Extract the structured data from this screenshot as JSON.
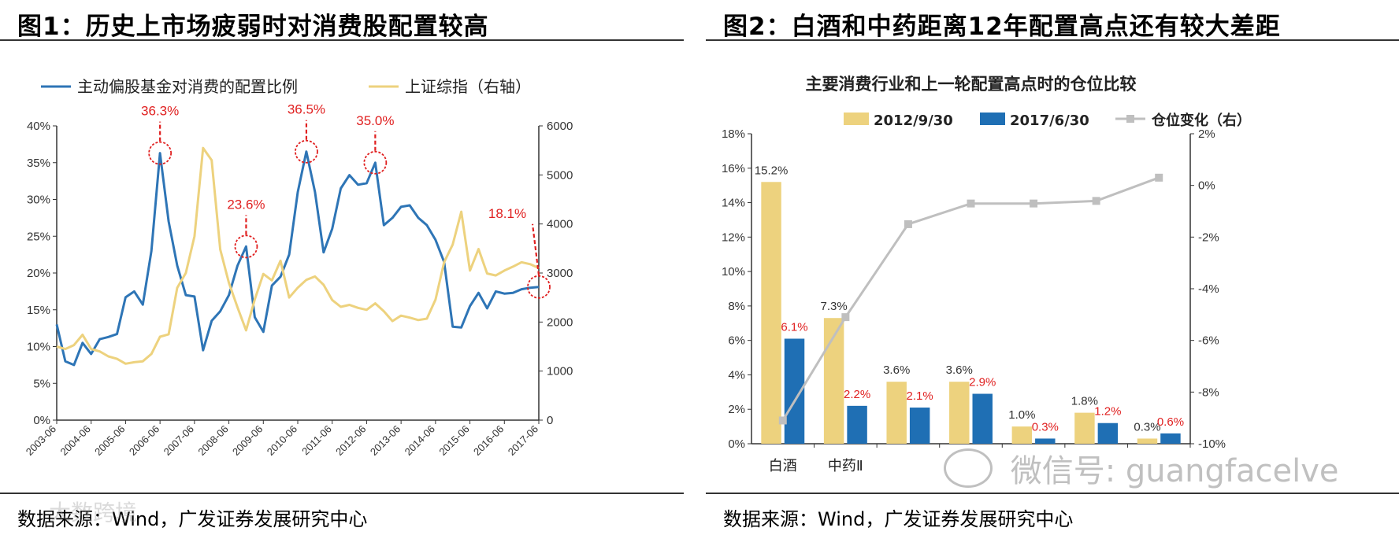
{
  "panels": [
    {
      "title": "图1：历史上市场疲弱时对消费股配置较高",
      "source": "数据来源：Wind，广发证券发展研究中心"
    },
    {
      "title": "图2：白酒和中药距离12年配置高点还有较大差距",
      "source": "数据来源：Wind，广发证券发展研究中心"
    }
  ],
  "watermarks": {
    "left": "大数跨境",
    "right": "微信号: guangfacelve"
  },
  "chart_data": [
    {
      "type": "line",
      "title": "",
      "legend_position": "top",
      "x_tick_labels": [
        "2003-06",
        "2004-06",
        "2005-06",
        "2006-06",
        "2007-06",
        "2008-06",
        "2009-06",
        "2010-06",
        "2011-06",
        "2012-06",
        "2013-06",
        "2014-06",
        "2015-06",
        "2016-06",
        "2017-06"
      ],
      "x_start": 2003.5,
      "x_end": 2017.5,
      "y_left": {
        "min": 0,
        "max": 0.4,
        "step": 0.05,
        "tick_labels": [
          "0%",
          "5%",
          "10%",
          "15%",
          "20%",
          "25%",
          "30%",
          "35%",
          "40%"
        ]
      },
      "y_right": {
        "min": 0,
        "max": 6000,
        "step": 1000,
        "tick_labels": [
          "0",
          "1000",
          "2000",
          "3000",
          "4000",
          "5000",
          "6000"
        ]
      },
      "grid": false,
      "series": [
        {
          "name": "主动偏股基金对消费的配置比例",
          "axis": "left",
          "color": "#2E75B6",
          "x": [
            2003.5,
            2003.75,
            2004.0,
            2004.25,
            2004.5,
            2004.75,
            2005.0,
            2005.25,
            2005.5,
            2005.75,
            2006.0,
            2006.25,
            2006.5,
            2006.75,
            2007.0,
            2007.25,
            2007.5,
            2007.75,
            2008.0,
            2008.25,
            2008.5,
            2008.75,
            2009.0,
            2009.25,
            2009.5,
            2009.75,
            2010.0,
            2010.25,
            2010.5,
            2010.75,
            2011.0,
            2011.25,
            2011.5,
            2011.75,
            2012.0,
            2012.25,
            2012.5,
            2012.75,
            2013.0,
            2013.25,
            2013.5,
            2013.75,
            2014.0,
            2014.25,
            2014.5,
            2014.75,
            2015.0,
            2015.25,
            2015.5,
            2015.75,
            2016.0,
            2016.25,
            2016.5,
            2016.75,
            2017.0,
            2017.25,
            2017.5
          ],
          "values": [
            0.13,
            0.08,
            0.075,
            0.105,
            0.09,
            0.11,
            0.113,
            0.117,
            0.167,
            0.175,
            0.157,
            0.23,
            0.363,
            0.27,
            0.21,
            0.17,
            0.168,
            0.095,
            0.135,
            0.148,
            0.17,
            0.21,
            0.236,
            0.14,
            0.12,
            0.183,
            0.195,
            0.225,
            0.31,
            0.365,
            0.31,
            0.228,
            0.26,
            0.315,
            0.333,
            0.32,
            0.322,
            0.35,
            0.265,
            0.275,
            0.29,
            0.292,
            0.275,
            0.265,
            0.245,
            0.215,
            0.127,
            0.126,
            0.155,
            0.173,
            0.152,
            0.175,
            0.172,
            0.173,
            0.178,
            0.18,
            0.181
          ]
        },
        {
          "name": "上证综指（右轴）",
          "axis": "right",
          "color": "#EDD27E",
          "x": [
            2003.5,
            2003.75,
            2004.0,
            2004.25,
            2004.5,
            2004.75,
            2005.0,
            2005.25,
            2005.5,
            2005.75,
            2006.0,
            2006.25,
            2006.5,
            2006.75,
            2007.0,
            2007.25,
            2007.5,
            2007.75,
            2008.0,
            2008.25,
            2008.5,
            2008.75,
            2009.0,
            2009.25,
            2009.5,
            2009.75,
            2010.0,
            2010.25,
            2010.5,
            2010.75,
            2011.0,
            2011.25,
            2011.5,
            2011.75,
            2012.0,
            2012.25,
            2012.5,
            2012.75,
            2013.0,
            2013.25,
            2013.5,
            2013.75,
            2014.0,
            2014.25,
            2014.5,
            2014.75,
            2015.0,
            2015.25,
            2015.5,
            2015.75,
            2016.0,
            2016.25,
            2016.5,
            2016.75,
            2017.0,
            2017.25,
            2017.5
          ],
          "values": [
            1500,
            1450,
            1530,
            1740,
            1450,
            1400,
            1300,
            1250,
            1150,
            1180,
            1200,
            1350,
            1700,
            1750,
            2700,
            3000,
            3750,
            5550,
            5300,
            3480,
            2800,
            2300,
            1830,
            2460,
            2980,
            2850,
            3250,
            2500,
            2700,
            2860,
            2930,
            2760,
            2450,
            2310,
            2350,
            2290,
            2250,
            2380,
            2220,
            2020,
            2130,
            2090,
            2040,
            2070,
            2460,
            3220,
            3580,
            4250,
            3050,
            3490,
            2990,
            2950,
            3050,
            3130,
            3220,
            3180,
            3100
          ]
        }
      ],
      "annotations": [
        {
          "label": "36.3%",
          "x": 2006.5,
          "value": 0.363
        },
        {
          "label": "23.6%",
          "x": 2009.0,
          "value": 0.236
        },
        {
          "label": "36.5%",
          "x": 2010.75,
          "value": 0.365
        },
        {
          "label": "35.0%",
          "x": 2012.75,
          "value": 0.35
        },
        {
          "label": "18.1%",
          "x": 2017.5,
          "value": 0.181
        }
      ]
    },
    {
      "type": "bar",
      "title": "主要消费行业和上一轮配置高点时的仓位比较",
      "legend_position": "top",
      "categories": [
        "白酒",
        "中药Ⅱ",
        "",
        "",
        "",
        "",
        ""
      ],
      "y_left": {
        "min": 0,
        "max": 0.18,
        "step": 0.02,
        "tick_labels": [
          "0%",
          "2%",
          "4%",
          "6%",
          "8%",
          "10%",
          "12%",
          "14%",
          "16%",
          "18%"
        ]
      },
      "y_right": {
        "min": -0.1,
        "max": 0.02,
        "step": 0.02,
        "tick_labels": [
          "-10%",
          "-8%",
          "-6%",
          "-4%",
          "-2%",
          "0%",
          "2%"
        ]
      },
      "grid": false,
      "series": [
        {
          "name": "2012/9/30",
          "kind": "bar",
          "axis": "left",
          "color": "#EDD27E",
          "values": [
            0.152,
            0.073,
            0.036,
            0.036,
            0.01,
            0.018,
            0.003
          ],
          "labels": [
            "15.2%",
            "7.3%",
            "3.6%",
            "3.6%",
            "1.0%",
            "1.8%",
            "0.3%"
          ],
          "label_color": "#333333"
        },
        {
          "name": "2017/6/30",
          "kind": "bar",
          "axis": "left",
          "color": "#1F6FB4",
          "values": [
            0.061,
            0.022,
            0.021,
            0.029,
            0.003,
            0.012,
            0.006
          ],
          "labels": [
            "6.1%",
            "2.2%",
            "2.1%",
            "2.9%",
            "0.3%",
            "1.2%",
            "0.6%"
          ],
          "label_color": "#E02020"
        },
        {
          "name": "仓位变化（右）",
          "kind": "line",
          "axis": "right",
          "color": "#BFBFBF",
          "values": [
            -0.091,
            -0.051,
            -0.015,
            -0.007,
            -0.007,
            -0.006,
            0.003
          ]
        }
      ]
    }
  ]
}
